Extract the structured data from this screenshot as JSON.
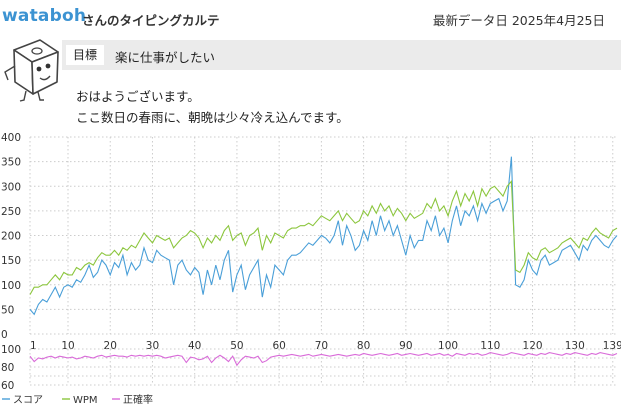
{
  "header": {
    "username": "wataboh",
    "title_suffix": "さんのタイピングカルテ",
    "latest_date": "最新データ日 2025年4月25日"
  },
  "goal": {
    "label": "目標",
    "text": "楽に仕事がしたい"
  },
  "message": {
    "line1": "おはようございます。",
    "line2": "ここ数日の春雨に、朝晩は少々冷え込んでます。"
  },
  "colors": {
    "score": "#4a9fd8",
    "wpm": "#8cc63e",
    "accuracy": "#d96bd9",
    "grid": "#cccccc",
    "link": "#3c93d2"
  },
  "icons": {
    "mascot": "cube-character-icon"
  },
  "chart_data": [
    {
      "type": "line",
      "yticks": [
        0,
        50,
        100,
        150,
        200,
        250,
        300,
        350,
        400
      ],
      "ylim": [
        0,
        400
      ],
      "xlim": [
        1,
        140
      ],
      "xticks": [
        1,
        10,
        20,
        30,
        40,
        50,
        60,
        70,
        80,
        90,
        100,
        110,
        120,
        130,
        139
      ],
      "grid": true,
      "series": [
        {
          "name": "スコア",
          "color": "#4a9fd8",
          "values": [
            50,
            40,
            60,
            70,
            65,
            80,
            95,
            75,
            95,
            100,
            95,
            110,
            105,
            120,
            140,
            115,
            125,
            150,
            140,
            120,
            145,
            135,
            160,
            120,
            145,
            130,
            140,
            175,
            150,
            145,
            170,
            160,
            155,
            150,
            100,
            140,
            150,
            130,
            120,
            135,
            125,
            80,
            130,
            100,
            140,
            110,
            150,
            170,
            85,
            120,
            140,
            90,
            120,
            135,
            150,
            75,
            120,
            95,
            140,
            130,
            120,
            150,
            160,
            160,
            165,
            175,
            185,
            180,
            190,
            200,
            195,
            185,
            200,
            230,
            180,
            220,
            200,
            170,
            180,
            210,
            190,
            230,
            200,
            240,
            210,
            230,
            200,
            220,
            190,
            160,
            200,
            175,
            190,
            190,
            230,
            210,
            240,
            200,
            215,
            185,
            230,
            260,
            220,
            250,
            240,
            260,
            230,
            265,
            245,
            265,
            270,
            275,
            250,
            270,
            360,
            100,
            95,
            110,
            150,
            130,
            120,
            150,
            160,
            140,
            145,
            150,
            170,
            175,
            180,
            165,
            150,
            180,
            170,
            190,
            200,
            190,
            180,
            175,
            190,
            200
          ]
        },
        {
          "name": "WPM",
          "color": "#8cc63e",
          "values": [
            80,
            95,
            95,
            100,
            100,
            110,
            120,
            110,
            125,
            120,
            120,
            135,
            130,
            140,
            145,
            140,
            155,
            165,
            160,
            160,
            170,
            160,
            175,
            170,
            180,
            175,
            190,
            205,
            195,
            185,
            200,
            195,
            190,
            195,
            175,
            185,
            195,
            200,
            210,
            205,
            195,
            175,
            195,
            185,
            200,
            190,
            210,
            220,
            190,
            200,
            205,
            180,
            200,
            205,
            215,
            170,
            200,
            185,
            205,
            200,
            195,
            210,
            215,
            215,
            220,
            220,
            225,
            220,
            230,
            240,
            235,
            230,
            240,
            250,
            230,
            245,
            235,
            225,
            230,
            250,
            240,
            260,
            245,
            265,
            250,
            260,
            240,
            255,
            245,
            230,
            245,
            235,
            240,
            245,
            265,
            255,
            275,
            250,
            260,
            240,
            270,
            290,
            260,
            285,
            270,
            290,
            260,
            295,
            280,
            295,
            300,
            290,
            280,
            300,
            310,
            130,
            125,
            140,
            165,
            155,
            150,
            170,
            175,
            165,
            170,
            175,
            185,
            190,
            195,
            185,
            175,
            195,
            190,
            205,
            215,
            205,
            200,
            195,
            210,
            215
          ]
        }
      ]
    },
    {
      "type": "line",
      "yticks": [
        60,
        80,
        100
      ],
      "ylim": [
        60,
        100
      ],
      "xlim": [
        1,
        140
      ],
      "grid": true,
      "series": [
        {
          "name": "正確率",
          "color": "#d96bd9",
          "values": [
            92,
            86,
            90,
            89,
            91,
            92,
            90,
            92,
            91,
            90,
            91,
            89,
            90,
            92,
            91,
            90,
            92,
            93,
            91,
            92,
            93,
            92,
            92,
            91,
            93,
            92,
            93,
            92,
            93,
            92,
            93,
            92,
            90,
            91,
            92,
            93,
            92,
            85,
            91,
            90,
            88,
            89,
            92,
            85,
            90,
            93,
            90,
            86,
            92,
            82,
            88,
            92,
            91,
            90,
            92,
            85,
            87,
            91,
            92,
            93,
            92,
            93,
            94,
            93,
            92,
            93,
            94,
            92,
            93,
            94,
            93,
            92,
            93,
            94,
            93,
            92,
            93,
            94,
            93,
            95,
            94,
            93,
            94,
            95,
            94,
            93,
            94,
            95,
            93,
            94,
            95,
            94,
            93,
            94,
            95,
            93,
            94,
            95,
            93,
            94,
            92,
            95,
            94,
            93,
            95,
            94,
            95,
            93,
            94,
            96,
            95,
            94,
            93,
            94,
            96,
            95,
            94,
            93,
            95,
            94,
            93,
            95,
            94,
            96,
            95,
            94,
            93,
            95,
            94,
            96,
            95,
            94,
            93,
            95,
            94,
            96,
            95,
            94,
            93,
            95
          ]
        }
      ]
    }
  ]
}
